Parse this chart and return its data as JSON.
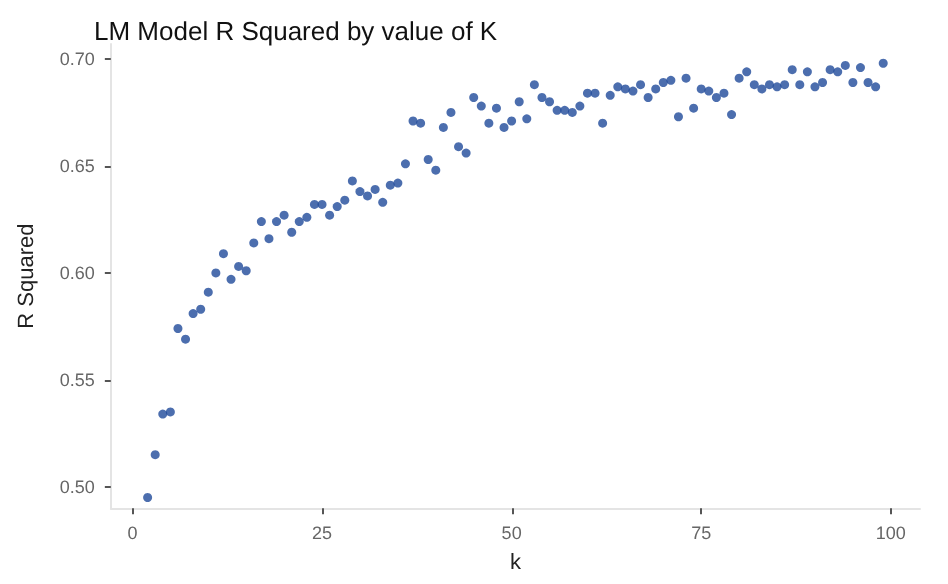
{
  "chart_data": {
    "type": "scatter",
    "title": "LM Model R Squared by value of K",
    "xlabel": "k",
    "ylabel": "R Squared",
    "x": [
      2,
      3,
      4,
      5,
      6,
      7,
      8,
      9,
      10,
      11,
      12,
      13,
      14,
      15,
      16,
      17,
      18,
      19,
      20,
      21,
      22,
      23,
      24,
      25,
      26,
      27,
      28,
      29,
      30,
      31,
      32,
      33,
      34,
      35,
      36,
      37,
      38,
      39,
      40,
      41,
      42,
      43,
      44,
      45,
      46,
      47,
      48,
      49,
      50,
      51,
      52,
      53,
      54,
      55,
      56,
      57,
      58,
      59,
      60,
      61,
      62,
      63,
      64,
      65,
      66,
      67,
      68,
      69,
      70,
      71,
      72,
      73,
      74,
      75,
      76,
      77,
      78,
      79,
      80,
      81,
      82,
      83,
      84,
      85,
      86,
      87,
      88,
      89,
      90,
      91,
      92,
      93,
      94,
      95,
      96,
      97,
      98,
      99
    ],
    "series": [
      {
        "color": "#1f4a9a",
        "values": [
          0.495,
          0.515,
          0.534,
          0.535,
          0.574,
          0.569,
          0.581,
          0.583,
          0.591,
          0.6,
          0.609,
          0.597,
          0.603,
          0.601,
          0.614,
          0.624,
          0.616,
          0.624,
          0.627,
          0.619,
          0.624,
          0.626,
          0.632,
          0.632,
          0.627,
          0.631,
          0.634,
          0.643,
          0.638,
          0.636,
          0.639,
          0.633,
          0.641,
          0.642,
          0.651,
          0.671,
          0.67,
          0.653,
          0.648,
          0.668,
          0.675,
          0.659,
          0.656,
          0.682,
          0.678,
          0.67,
          0.677,
          0.668,
          0.671,
          0.68,
          0.672,
          0.688,
          0.682,
          0.68,
          0.676,
          0.676,
          0.675,
          0.678,
          0.684,
          0.684,
          0.67,
          0.683,
          0.687,
          0.686,
          0.685,
          0.688,
          0.682,
          0.686,
          0.689,
          0.69,
          0.673,
          0.691,
          0.677,
          0.686,
          0.685,
          0.682,
          0.684,
          0.674,
          0.691,
          0.694,
          0.688,
          0.686,
          0.688,
          0.687,
          0.688,
          0.695,
          0.688,
          0.694,
          0.687,
          0.689,
          0.695,
          0.694,
          0.697,
          0.689,
          0.696,
          0.689,
          0.687,
          0.698
        ]
      }
    ],
    "xlim": [
      -2.85,
      103.85
    ],
    "xticks": [
      0,
      25,
      50,
      75,
      100
    ],
    "ylim": [
      0.49,
      0.707
    ],
    "yticks": [
      {
        "value": 0.5,
        "label": "0.50"
      },
      {
        "value": 0.55,
        "label": "0.55"
      },
      {
        "value": 0.6,
        "label": "0.60"
      },
      {
        "value": 0.65,
        "label": "0.65"
      },
      {
        "value": 0.7,
        "label": "0.70"
      }
    ],
    "marker": "circle",
    "grid": false
  }
}
